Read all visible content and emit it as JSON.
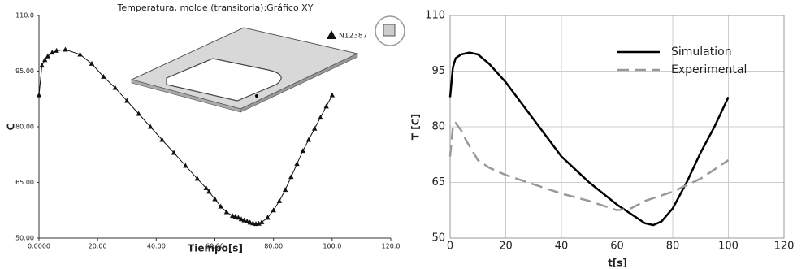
{
  "chart_data": [
    {
      "type": "line",
      "title": "Temperatura, molde (transitoria):Gráfico XY",
      "x_label": "Tiempo[s]",
      "y_label": "C",
      "xlim": [
        0,
        120
      ],
      "xticks": [
        {
          "value": 0,
          "label": "0.0000"
        },
        {
          "value": 20,
          "label": "20.00"
        },
        {
          "value": 40,
          "label": "40.00"
        },
        {
          "value": 60,
          "label": "60.00"
        },
        {
          "value": 80,
          "label": "80.00"
        },
        {
          "value": 100,
          "label": "100.0"
        },
        {
          "value": 120,
          "label": "120.0"
        }
      ],
      "ylim": [
        50,
        110
      ],
      "yticks": [
        {
          "value": 50,
          "label": "50.00"
        },
        {
          "value": 65,
          "label": "65.00"
        },
        {
          "value": 80,
          "label": "80.00"
        },
        {
          "value": 95,
          "label": "95.00"
        },
        {
          "value": 110,
          "label": "110.0"
        }
      ],
      "grid": false,
      "marker": "triangle",
      "series": [
        {
          "name": "N12387",
          "color": "#111111",
          "x": [
            0,
            1,
            2,
            3,
            4.5,
            6,
            9,
            14,
            18,
            22,
            26,
            30,
            34,
            38,
            42,
            46,
            50,
            54,
            57,
            58,
            60,
            62,
            64,
            66,
            67,
            68,
            69,
            70,
            71,
            72,
            73,
            74,
            75,
            76,
            78,
            80,
            82,
            84,
            86,
            88,
            90,
            92,
            94,
            96,
            98,
            100
          ],
          "values": [
            88.5,
            96.5,
            98,
            99,
            100,
            100.5,
            100.8,
            99.5,
            97,
            93.5,
            90.5,
            87,
            83.5,
            80,
            76.5,
            73,
            69.5,
            66,
            63.5,
            62.5,
            60.5,
            58.5,
            57,
            56,
            55.8,
            55.5,
            55.1,
            54.8,
            54.5,
            54.2,
            54,
            53.8,
            53.9,
            54.3,
            55.5,
            57.5,
            60,
            63,
            66.5,
            70,
            73.5,
            76.5,
            79.5,
            82.5,
            85.5,
            88.5
          ]
        }
      ]
    },
    {
      "type": "line",
      "x_label": "t[s]",
      "y_label": "T [C]",
      "xlim": [
        0,
        120
      ],
      "xticks": [
        0,
        20,
        40,
        60,
        80,
        100,
        120
      ],
      "ylim": [
        50,
        110
      ],
      "yticks": [
        50,
        65,
        80,
        95,
        110
      ],
      "grid": true,
      "legend": "upper right",
      "series": [
        {
          "name": "Simulation",
          "color": "#000000",
          "dash": "solid",
          "x": [
            0,
            1,
            2,
            4,
            7,
            10,
            14,
            20,
            30,
            40,
            50,
            60,
            66,
            70,
            73,
            76,
            80,
            85,
            90,
            95,
            100
          ],
          "values": [
            88,
            96,
            98.5,
            99.5,
            100,
            99.5,
            97,
            92,
            82,
            72,
            65,
            59,
            56,
            54,
            53.5,
            54.5,
            58,
            65,
            73,
            80,
            88
          ]
        },
        {
          "name": "Experimental",
          "color": "#999999",
          "dash": "dashed",
          "x": [
            0,
            1,
            2,
            4,
            6,
            10,
            14,
            20,
            30,
            40,
            50,
            60,
            65,
            70,
            80,
            90,
            100
          ],
          "values": [
            72,
            80,
            81,
            79,
            76,
            71,
            69,
            67,
            64.5,
            62,
            60,
            57.5,
            58,
            60,
            62.5,
            66,
            71
          ]
        }
      ]
    }
  ]
}
